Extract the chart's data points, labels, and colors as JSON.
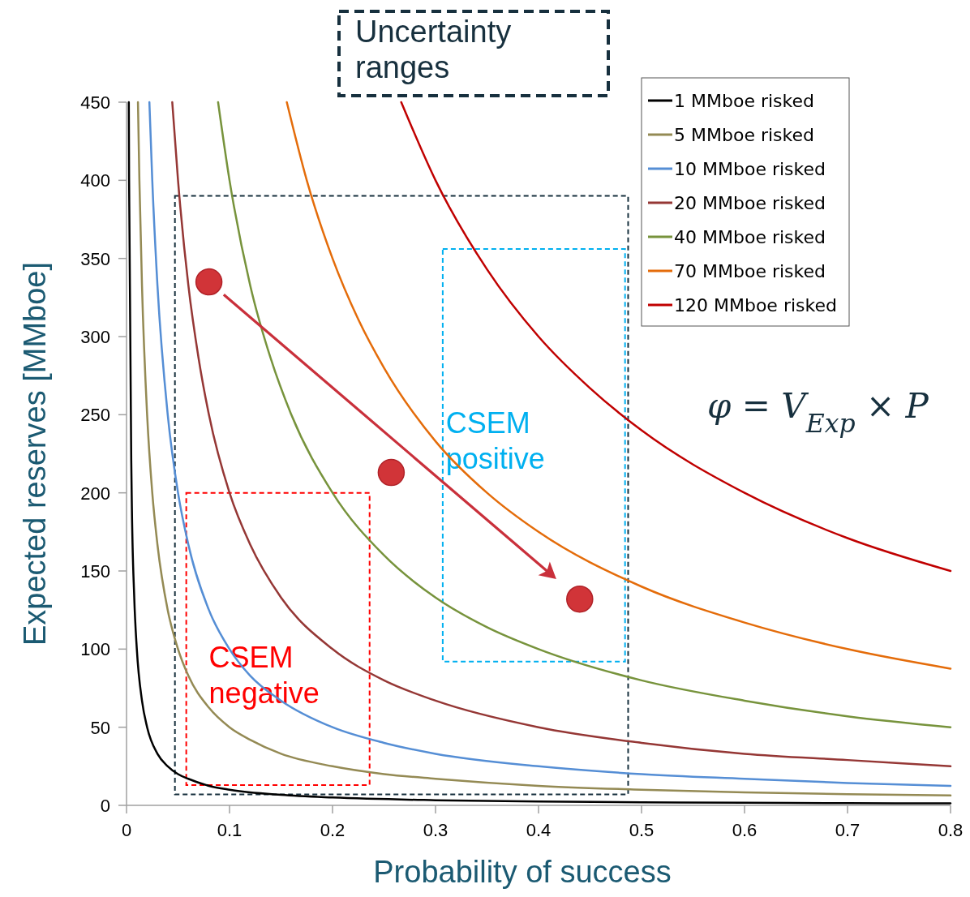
{
  "chart_data": {
    "type": "line",
    "xlabel": "Probability of success",
    "ylabel": "Expected reserves [MMboe]",
    "xlim": [
      0,
      0.8
    ],
    "xticks": [
      0,
      0.1,
      0.2,
      0.3,
      0.4,
      0.5,
      0.6,
      0.7,
      0.8
    ],
    "ylim": [
      0,
      450
    ],
    "yticks": [
      0,
      50,
      100,
      150,
      200,
      250,
      300,
      350,
      400,
      450
    ],
    "grid": false,
    "legend": "top right",
    "line_style": "solid",
    "series": [
      {
        "name": "1 MMboe risked",
        "color": "#000000",
        "x": [
          0.00222,
          0.0025,
          0.005,
          0.0075,
          0.01,
          0.015,
          0.02,
          0.03,
          0.04,
          0.05,
          0.06,
          0.08,
          0.1,
          0.15,
          0.2,
          0.3,
          0.4,
          0.5,
          0.6,
          0.7,
          0.8
        ],
        "values": [
          450,
          400,
          200,
          133,
          100,
          67,
          50,
          33,
          25,
          20,
          17,
          12.5,
          10,
          6.7,
          5,
          3.3,
          2.5,
          2,
          1.7,
          1.4,
          1.3
        ]
      },
      {
        "name": "5 MMboe risked",
        "color": "#948a54",
        "x": [
          0.0111,
          0.0125,
          0.015,
          0.02,
          0.025,
          0.03,
          0.04,
          0.05,
          0.06,
          0.08,
          0.1,
          0.12,
          0.15,
          0.2,
          0.25,
          0.3,
          0.4,
          0.5,
          0.6,
          0.7,
          0.8
        ],
        "values": [
          450,
          400,
          333,
          250,
          200,
          167,
          125,
          100,
          83,
          62.5,
          50,
          42,
          33,
          25,
          20,
          17,
          12.5,
          10,
          8.3,
          7.1,
          6.3
        ]
      },
      {
        "name": "10 MMboe risked",
        "color": "#558ed5",
        "x": [
          0.0222,
          0.025,
          0.03,
          0.04,
          0.05,
          0.06,
          0.08,
          0.1,
          0.12,
          0.15,
          0.2,
          0.25,
          0.3,
          0.4,
          0.5,
          0.6,
          0.7,
          0.8
        ],
        "values": [
          450,
          400,
          333,
          250,
          200,
          167,
          125,
          100,
          83,
          67,
          50,
          40,
          33,
          25,
          20,
          17,
          14.3,
          12.5
        ]
      },
      {
        "name": "20 MMboe risked",
        "color": "#953735",
        "x": [
          0.0444,
          0.05,
          0.06,
          0.07,
          0.08,
          0.1,
          0.12,
          0.15,
          0.2,
          0.25,
          0.3,
          0.4,
          0.5,
          0.6,
          0.7,
          0.8
        ],
        "values": [
          450,
          400,
          333,
          286,
          250,
          200,
          167,
          133,
          100,
          80,
          67,
          50,
          40,
          33,
          29,
          25
        ]
      },
      {
        "name": "40 MMboe risked",
        "color": "#77933c",
        "x": [
          0.0889,
          0.1,
          0.12,
          0.14,
          0.16,
          0.2,
          0.25,
          0.3,
          0.35,
          0.4,
          0.5,
          0.6,
          0.7,
          0.8
        ],
        "values": [
          450,
          400,
          333,
          286,
          250,
          200,
          160,
          133,
          114,
          100,
          80,
          67,
          57,
          50
        ]
      },
      {
        "name": "70 MMboe risked",
        "color": "#e46c0a",
        "x": [
          0.1556,
          0.175,
          0.2,
          0.225,
          0.25,
          0.3,
          0.35,
          0.4,
          0.5,
          0.6,
          0.7,
          0.8
        ],
        "values": [
          450,
          400,
          350,
          311,
          280,
          233,
          200,
          175,
          140,
          117,
          100,
          87.5
        ]
      },
      {
        "name": "120 MMboe risked",
        "color": "#c00000",
        "x": [
          0.2667,
          0.3,
          0.35,
          0.4,
          0.45,
          0.5,
          0.6,
          0.7,
          0.8
        ],
        "values": [
          450,
          400,
          343,
          300,
          267,
          240,
          200,
          171,
          150
        ]
      },
      {
        "type": "scatter",
        "color": "#d13438",
        "marker": "circle",
        "x": [
          0.08,
          0.257,
          0.44
        ],
        "values": [
          335,
          213,
          132
        ]
      }
    ],
    "annotations": [
      "Uncertainty ranges",
      "CSEM positive",
      "CSEM negative",
      "φ = V$_{Exp}$ × P"
    ]
  }
}
